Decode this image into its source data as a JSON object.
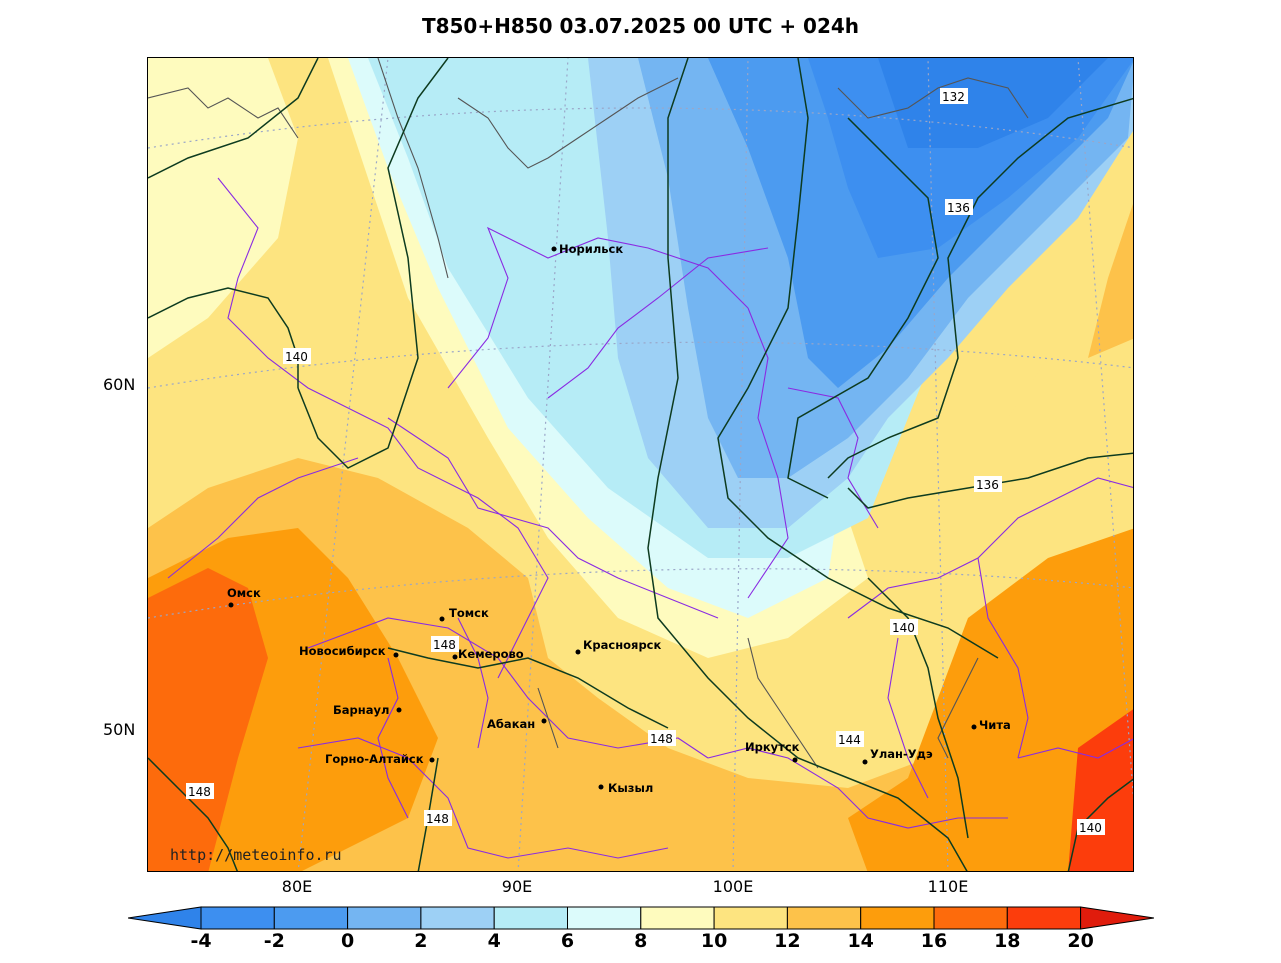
{
  "title": "T850+H850 03.07.2025 00 UTC + 024h",
  "source_url": "http://meteoinfo.ru",
  "latitude_labels": [
    "60N",
    "50N"
  ],
  "longitude_labels": [
    "80E",
    "90E",
    "100E",
    "110E"
  ],
  "colorbar": {
    "ticks": [
      "-4",
      "-2",
      "0",
      "2",
      "4",
      "6",
      "8",
      "10",
      "12",
      "14",
      "16",
      "18",
      "20"
    ],
    "colors": [
      "#2f83ea",
      "#3d8ff0",
      "#4c9bf0",
      "#74b5f2",
      "#9dd0f5",
      "#b6ecf6",
      "#dcfbfb",
      "#fefbbe",
      "#fde480",
      "#fdc24a",
      "#fd9d0c",
      "#fd6b0c",
      "#fc3d0c",
      "#e01c0c"
    ]
  },
  "cities": [
    {
      "name": "Норильск"
    },
    {
      "name": "Омск"
    },
    {
      "name": "Томск"
    },
    {
      "name": "Новосибирск"
    },
    {
      "name": "Кемерово"
    },
    {
      "name": "Красноярск"
    },
    {
      "name": "Барнаул"
    },
    {
      "name": "Абакан"
    },
    {
      "name": "Горно-Алтайск"
    },
    {
      "name": "Кызыл"
    },
    {
      "name": "Иркутск"
    },
    {
      "name": "Улан-Удэ"
    },
    {
      "name": "Чита"
    }
  ],
  "contour_labels": [
    "132",
    "136",
    "140",
    "136",
    "140",
    "148",
    "148",
    "144",
    "148",
    "148",
    "140"
  ]
}
